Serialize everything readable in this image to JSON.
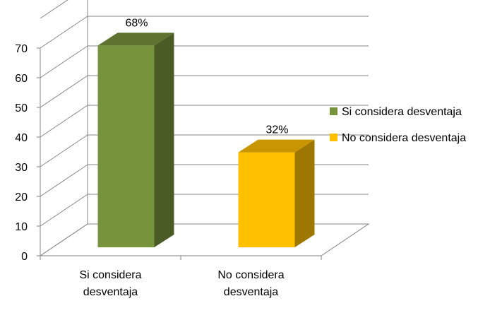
{
  "chart_data": {
    "type": "bar",
    "categories": [
      "Si considera desventaja",
      "No considera desventaja"
    ],
    "category_lines": [
      [
        "Si considera",
        "desventaja"
      ],
      [
        "No considera",
        "desventaja"
      ]
    ],
    "values": [
      68,
      32
    ],
    "data_labels": [
      "68%",
      "32%"
    ],
    "colors": [
      "#77933C",
      "#FFC000"
    ],
    "ylim": [
      0,
      70
    ],
    "yticks": [
      0,
      10,
      20,
      30,
      40,
      50,
      60,
      70
    ],
    "legend": [
      {
        "label": "Si considera desventaja",
        "color": "#77933C"
      },
      {
        "label": "No considera desventaja",
        "color": "#FFC000"
      }
    ],
    "legend_position": "right",
    "grid": true,
    "style": "3d"
  }
}
